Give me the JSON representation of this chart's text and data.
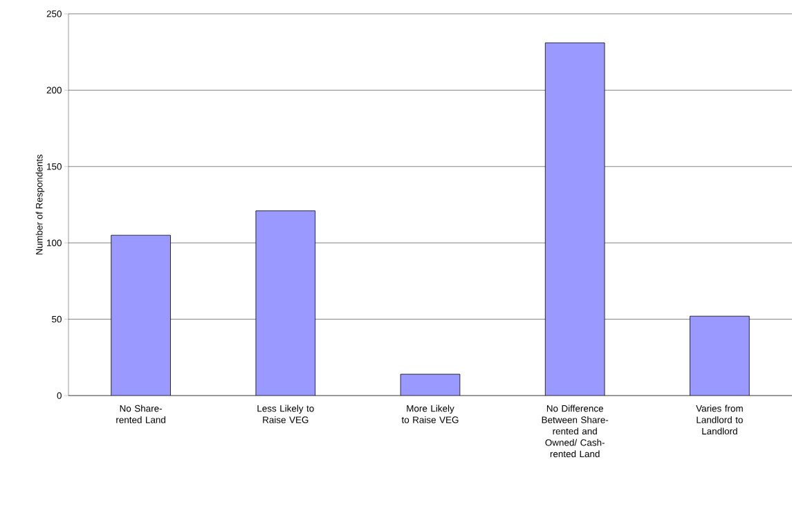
{
  "chart_data": {
    "type": "bar",
    "ylabel": "Number of Respondents",
    "categories": [
      "No Share-rented Land",
      "Less Likely to Raise VEG",
      "More Likely to Raise VEG",
      "No Difference Between Share-rented and Owned/ Cash-rented Land",
      "Varies from Landlord to Landlord"
    ],
    "values": [
      105,
      121,
      14,
      231,
      52
    ],
    "color": "#9999ff",
    "ylim": [
      0,
      250
    ],
    "yticks": [
      0,
      50,
      100,
      150,
      200,
      250
    ],
    "grid": "y"
  }
}
